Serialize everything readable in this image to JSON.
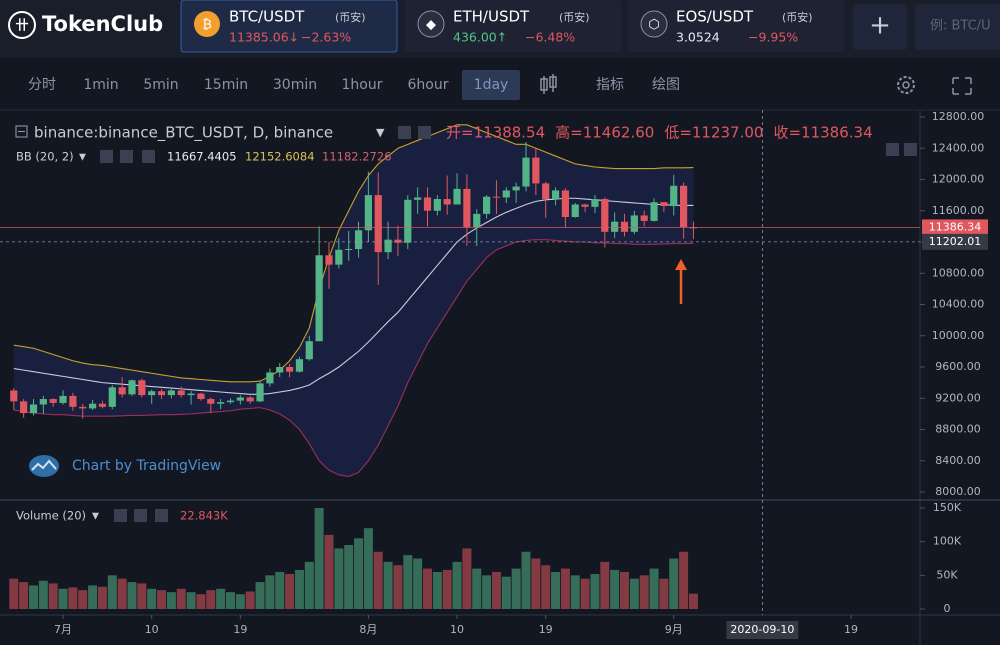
{
  "header": {
    "logo": "TokenClub",
    "tickers": [
      {
        "icon": "₿",
        "name": "BTC/USDT",
        "exchange": "(币安)",
        "price": "11385.06↓",
        "change": "−2.63%",
        "direction": "down"
      },
      {
        "icon": "◆",
        "name": "ETH/USDT",
        "exchange": "(币安)",
        "price": "436.00↑",
        "change": "−6.48%",
        "direction": "up"
      },
      {
        "icon": "⬡",
        "name": "EOS/USDT",
        "exchange": "(币安)",
        "price": "3.0524",
        "change": "−9.95%",
        "direction": "neutral"
      }
    ],
    "add_button": "+",
    "search_placeholder": "例: BTC/U"
  },
  "toolbar": {
    "intervals": [
      "分时",
      "1min",
      "5min",
      "15min",
      "30min",
      "1hour",
      "6hour",
      "1day"
    ],
    "active_interval": 7,
    "tools": [
      "指标",
      "绘图"
    ]
  },
  "chart_data": {
    "type": "candlestick",
    "symbol": "binance:binance_BTC_USDT, D, binance",
    "legend_ohlc": [
      "开=11388.54",
      "高=11462.60",
      "低=11237.00",
      "收=11386.34"
    ],
    "indicator_label": "BB (20, 2)",
    "indicator_values": [
      "11667.4405",
      "12152.6084",
      "11182.2726"
    ],
    "volume_label": "Volume (20)",
    "watermark": "Chart by TradingView",
    "up_color": "#53b487",
    "down_color": "#e0575f",
    "xlim": [
      -1.4,
      92
    ],
    "ylim": [
      8000,
      12800
    ],
    "yticks": [
      {
        "value": 12800,
        "label": "12800.00"
      },
      {
        "value": 12400,
        "label": "12400.00"
      },
      {
        "value": 12000,
        "label": "12000.00"
      },
      {
        "value": 11600,
        "label": "11600.00"
      },
      {
        "value": 11200,
        "label": "11200.00"
      },
      {
        "value": 10800,
        "label": "10800.00"
      },
      {
        "value": 10400,
        "label": "10400.00"
      },
      {
        "value": 10000,
        "label": "10000.00"
      },
      {
        "value": 9600,
        "label": "9600.00"
      },
      {
        "value": 9200,
        "label": "9200.00"
      },
      {
        "value": 8800,
        "label": "8800.00"
      },
      {
        "value": 8400,
        "label": "8400.00"
      },
      {
        "value": 8000,
        "label": "8000.00"
      }
    ],
    "xticks": [
      {
        "value": 5,
        "label": "7月"
      },
      {
        "value": 14,
        "label": "10"
      },
      {
        "value": 23,
        "label": "19"
      },
      {
        "value": 36,
        "label": "8月"
      },
      {
        "value": 45,
        "label": "10"
      },
      {
        "value": 54,
        "label": "19"
      },
      {
        "value": 67,
        "label": "9月"
      },
      {
        "value": 85,
        "label": "19"
      }
    ],
    "crosshair": {
      "x": {
        "value": 76,
        "label": "2020-09-10"
      },
      "y": 11202.01
    },
    "open": [
      9300,
      9160,
      9010,
      9120,
      9190,
      9140,
      9230,
      9090,
      9070,
      9130,
      9090,
      9340,
      9250,
      9430,
      9240,
      9290,
      9240,
      9300,
      9240,
      9260,
      9190,
      9130,
      9150,
      9170,
      9210,
      9160,
      9390,
      9530,
      9600,
      9540,
      9700,
      9930,
      11030,
      10910,
      11100,
      11110,
      11350,
      11800,
      11070,
      11230,
      11190,
      11740,
      11770,
      11600,
      11750,
      11680,
      11880,
      11390,
      11560,
      11780,
      11770,
      11860,
      11910,
      12280,
      11950,
      11750,
      11860,
      11520,
      11680,
      11650,
      11750,
      11330,
      11460,
      11330,
      11540,
      11470,
      11710,
      11660,
      11920,
      11388.54
    ],
    "high": [
      9330,
      9190,
      9190,
      9230,
      9200,
      9300,
      9270,
      9130,
      9180,
      9170,
      9370,
      9470,
      9440,
      9450,
      9310,
      9320,
      9330,
      9350,
      9290,
      9270,
      9210,
      9190,
      9200,
      9240,
      9230,
      9420,
      9580,
      9650,
      9640,
      9730,
      10000,
      11400,
      11200,
      11250,
      11340,
      11460,
      12100,
      12090,
      11460,
      11410,
      11800,
      11900,
      11900,
      11800,
      12050,
      12080,
      12070,
      11620,
      11800,
      11990,
      11900,
      11960,
      12480,
      12400,
      11970,
      11900,
      11890,
      11700,
      11690,
      11800,
      11770,
      11580,
      11560,
      11600,
      11600,
      11760,
      11700,
      12060,
      11960,
      11462.6
    ],
    "low": [
      9050,
      8950,
      8980,
      9000,
      9090,
      9120,
      9040,
      8940,
      9050,
      9070,
      9060,
      9210,
      9230,
      9210,
      9130,
      9190,
      9200,
      9210,
      9120,
      9170,
      9010,
      9060,
      9130,
      9120,
      9130,
      9150,
      9350,
      9470,
      9470,
      9530,
      9680,
      9930,
      10600,
      10860,
      10960,
      11000,
      11200,
      10650,
      10980,
      11020,
      11110,
      11560,
      11400,
      11540,
      11550,
      11680,
      11150,
      11150,
      11500,
      11560,
      11700,
      11700,
      11850,
      11800,
      11510,
      11670,
      11380,
      11510,
      11580,
      11570,
      11130,
      11250,
      11270,
      11300,
      11400,
      11460,
      11580,
      11540,
      11240,
      11237
    ],
    "close": [
      9160,
      9010,
      9120,
      9190,
      9140,
      9230,
      9090,
      9070,
      9130,
      9090,
      9340,
      9250,
      9430,
      9240,
      9290,
      9240,
      9300,
      9240,
      9260,
      9190,
      9130,
      9150,
      9170,
      9210,
      9160,
      9390,
      9530,
      9600,
      9540,
      9700,
      9930,
      11030,
      10910,
      11100,
      11110,
      11350,
      11800,
      11070,
      11230,
      11190,
      11740,
      11770,
      11600,
      11750,
      11680,
      11880,
      11390,
      11560,
      11780,
      11770,
      11860,
      11910,
      12280,
      11950,
      11750,
      11860,
      11520,
      11680,
      11650,
      11750,
      11330,
      11460,
      11330,
      11540,
      11470,
      11710,
      11660,
      11920,
      11390,
      11386.34
    ],
    "bb": {
      "upper_color": "#c9a227",
      "middle_color": "#c9cde0",
      "lower_color": "#9b2f5c",
      "fill_color": "#1f2758",
      "upper": [
        9880,
        9860,
        9840,
        9800,
        9760,
        9720,
        9680,
        9650,
        9630,
        9620,
        9600,
        9580,
        9560,
        9540,
        9520,
        9500,
        9480,
        9460,
        9450,
        9440,
        9430,
        9420,
        9410,
        9410,
        9410,
        9420,
        9480,
        9560,
        9680,
        9850,
        10100,
        10600,
        11000,
        11350,
        11600,
        11850,
        12050,
        12200,
        12300,
        12400,
        12450,
        12500,
        12550,
        12600,
        12650,
        12700,
        12700,
        12650,
        12600,
        12550,
        12500,
        12450,
        12450,
        12400,
        12350,
        12300,
        12250,
        12200,
        12180,
        12160,
        12150,
        12140,
        12140,
        12140,
        12140,
        12140,
        12150,
        12150,
        12150,
        12152.6084
      ],
      "middle": [
        9580,
        9560,
        9540,
        9520,
        9500,
        9480,
        9460,
        9440,
        9420,
        9400,
        9390,
        9380,
        9370,
        9360,
        9350,
        9340,
        9330,
        9320,
        9310,
        9300,
        9290,
        9280,
        9270,
        9260,
        9250,
        9250,
        9260,
        9280,
        9300,
        9330,
        9370,
        9450,
        9520,
        9600,
        9700,
        9800,
        9920,
        10050,
        10180,
        10300,
        10450,
        10600,
        10750,
        10900,
        11050,
        11200,
        11300,
        11380,
        11450,
        11520,
        11580,
        11630,
        11680,
        11720,
        11740,
        11750,
        11760,
        11760,
        11750,
        11740,
        11730,
        11720,
        11710,
        11700,
        11690,
        11680,
        11680,
        11670,
        11670,
        11667.4405
      ],
      "lower": [
        9050,
        9030,
        9010,
        9000,
        8990,
        8990,
        8980,
        8970,
        8970,
        8970,
        8970,
        8975,
        8980,
        8980,
        8985,
        8990,
        8990,
        8995,
        9000,
        9010,
        9020,
        9030,
        9040,
        9060,
        9070,
        9080,
        9050,
        9000,
        8920,
        8800,
        8620,
        8400,
        8280,
        8220,
        8200,
        8250,
        8400,
        8600,
        8850,
        9100,
        9400,
        9650,
        9900,
        10100,
        10300,
        10500,
        10700,
        10850,
        11000,
        11100,
        11150,
        11200,
        11220,
        11230,
        11230,
        11220,
        11210,
        11200,
        11200,
        11190,
        11190,
        11180,
        11180,
        11170,
        11170,
        11170,
        11175,
        11180,
        11180,
        11182.2726
      ]
    },
    "volume": [
      45,
      40,
      35,
      42,
      38,
      30,
      32,
      28,
      35,
      33,
      50,
      45,
      40,
      38,
      30,
      28,
      25,
      30,
      25,
      22,
      28,
      30,
      25,
      22,
      26,
      40,
      50,
      55,
      52,
      58,
      70,
      150,
      110,
      90,
      95,
      105,
      120,
      85,
      70,
      65,
      80,
      75,
      60,
      55,
      58,
      70,
      90,
      60,
      50,
      55,
      48,
      60,
      85,
      75,
      65,
      55,
      60,
      50,
      45,
      52,
      70,
      58,
      55,
      45,
      50,
      60,
      45,
      75,
      85,
      22.843
    ],
    "volume_value_label": "22.843K",
    "volume_ylim": [
      0,
      150
    ],
    "volume_yticks": [
      {
        "value": 150,
        "label": "150K"
      },
      {
        "value": 100,
        "label": "100K"
      },
      {
        "value": 50,
        "label": "50K"
      },
      0
    ]
  }
}
